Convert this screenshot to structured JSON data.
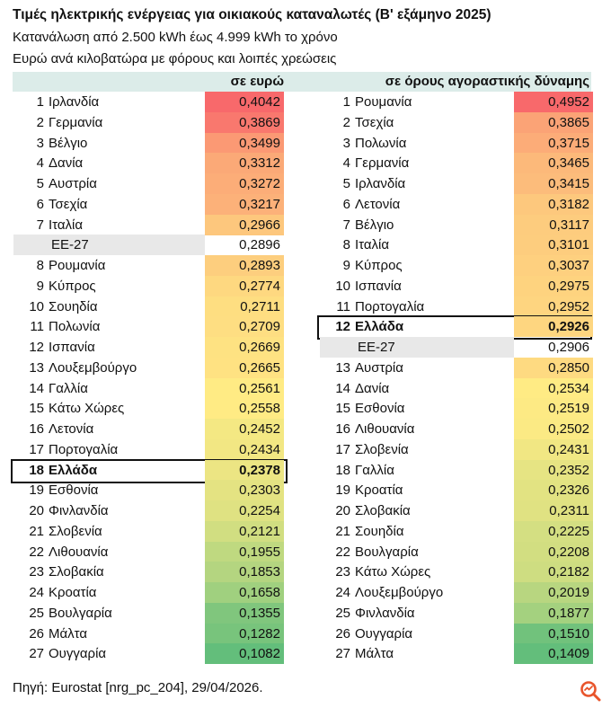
{
  "title": "Τιμές ηλεκτρικής ενέργειας για οικιακούς καταναλωτές (Β' εξάμηνο 2025)",
  "subtitle1": "Κατανάλωση από 2.500 kWh έως 4.999 kWh το χρόνο",
  "subtitle2": "Ευρώ ανά κιλοβατώρα με φόρους και λοιπές χρεώσεις",
  "source": "Πηγή: Eurostat [nrg_pc_204], 29/04/2026.",
  "logo": "magnifier-logo-icon",
  "colors": {
    "high": "#f8696b",
    "mid": "#ffeb84",
    "low": "#63be7b",
    "header_bg": "#dcece9",
    "eu_bg": "#e8e8e8"
  },
  "chart_data": {
    "type": "table",
    "tables": [
      {
        "header": "σε ευρώ",
        "rows": [
          {
            "rank": "1",
            "name": "Ιρλανδία",
            "value": "0,4042"
          },
          {
            "rank": "2",
            "name": "Γερμανία",
            "value": "0,3869"
          },
          {
            "rank": "3",
            "name": "Βέλγιο",
            "value": "0,3499"
          },
          {
            "rank": "4",
            "name": "Δανία",
            "value": "0,3312"
          },
          {
            "rank": "5",
            "name": "Αυστρία",
            "value": "0,3272"
          },
          {
            "rank": "6",
            "name": "Τσεχία",
            "value": "0,3217"
          },
          {
            "rank": "7",
            "name": "Ιταλία",
            "value": "0,2966"
          },
          {
            "rank": "",
            "name": "ΕΕ-27",
            "value": "0,2896",
            "eu": true
          },
          {
            "rank": "8",
            "name": "Ρουμανία",
            "value": "0,2893"
          },
          {
            "rank": "9",
            "name": "Κύπρος",
            "value": "0,2774"
          },
          {
            "rank": "10",
            "name": "Σουηδία",
            "value": "0,2711"
          },
          {
            "rank": "11",
            "name": "Πολωνία",
            "value": "0,2709"
          },
          {
            "rank": "12",
            "name": "Ισπανία",
            "value": "0,2669"
          },
          {
            "rank": "13",
            "name": "Λουξεμβούργο",
            "value": "0,2665"
          },
          {
            "rank": "14",
            "name": "Γαλλία",
            "value": "0,2561"
          },
          {
            "rank": "15",
            "name": "Κάτω Χώρες",
            "value": "0,2558"
          },
          {
            "rank": "16",
            "name": "Λετονία",
            "value": "0,2452"
          },
          {
            "rank": "17",
            "name": "Πορτογαλία",
            "value": "0,2434"
          },
          {
            "rank": "18",
            "name": "Ελλάδα",
            "value": "0,2378",
            "highlight": true
          },
          {
            "rank": "19",
            "name": "Εσθονία",
            "value": "0,2303"
          },
          {
            "rank": "20",
            "name": "Φινλανδία",
            "value": "0,2254"
          },
          {
            "rank": "21",
            "name": "Σλοβενία",
            "value": "0,2121"
          },
          {
            "rank": "22",
            "name": "Λιθουανία",
            "value": "0,1955"
          },
          {
            "rank": "23",
            "name": "Σλοβακία",
            "value": "0,1853"
          },
          {
            "rank": "24",
            "name": "Κροατία",
            "value": "0,1658"
          },
          {
            "rank": "25",
            "name": "Βουλγαρία",
            "value": "0,1355"
          },
          {
            "rank": "26",
            "name": "Μάλτα",
            "value": "0,1282"
          },
          {
            "rank": "27",
            "name": "Ουγγαρία",
            "value": "0,1082"
          }
        ]
      },
      {
        "header": "σε όρους αγοραστικής δύναμης",
        "rows": [
          {
            "rank": "1",
            "name": "Ρουμανία",
            "value": "0,4952"
          },
          {
            "rank": "2",
            "name": "Τσεχία",
            "value": "0,3865"
          },
          {
            "rank": "3",
            "name": "Πολωνία",
            "value": "0,3715"
          },
          {
            "rank": "4",
            "name": "Γερμανία",
            "value": "0,3465"
          },
          {
            "rank": "5",
            "name": "Ιρλανδία",
            "value": "0,3415"
          },
          {
            "rank": "6",
            "name": "Λετονία",
            "value": "0,3182"
          },
          {
            "rank": "7",
            "name": "Βέλγιο",
            "value": "0,3117"
          },
          {
            "rank": "8",
            "name": "Ιταλία",
            "value": "0,3101"
          },
          {
            "rank": "9",
            "name": "Κύπρος",
            "value": "0,3037"
          },
          {
            "rank": "10",
            "name": "Ισπανία",
            "value": "0,2975"
          },
          {
            "rank": "11",
            "name": "Πορτογαλία",
            "value": "0,2952"
          },
          {
            "rank": "12",
            "name": "Ελλάδα",
            "value": "0,2926",
            "highlight": true
          },
          {
            "rank": "",
            "name": "ΕΕ-27",
            "value": "0,2906",
            "eu": true
          },
          {
            "rank": "13",
            "name": "Αυστρία",
            "value": "0,2850"
          },
          {
            "rank": "14",
            "name": "Δανία",
            "value": "0,2534"
          },
          {
            "rank": "15",
            "name": "Εσθονία",
            "value": "0,2519"
          },
          {
            "rank": "16",
            "name": "Λιθουανία",
            "value": "0,2502"
          },
          {
            "rank": "17",
            "name": "Σλοβενία",
            "value": "0,2431"
          },
          {
            "rank": "18",
            "name": "Γαλλία",
            "value": "0,2352"
          },
          {
            "rank": "19",
            "name": "Κροατία",
            "value": "0,2326"
          },
          {
            "rank": "20",
            "name": "Σλοβακία",
            "value": "0,2311"
          },
          {
            "rank": "21",
            "name": "Σουηδία",
            "value": "0,2225"
          },
          {
            "rank": "22",
            "name": "Βουλγαρία",
            "value": "0,2208"
          },
          {
            "rank": "23",
            "name": "Κάτω Χώρες",
            "value": "0,2182"
          },
          {
            "rank": "24",
            "name": "Λουξεμβούργο",
            "value": "0,2019"
          },
          {
            "rank": "25",
            "name": "Φινλανδία",
            "value": "0,1877"
          },
          {
            "rank": "26",
            "name": "Ουγγαρία",
            "value": "0,1510"
          },
          {
            "rank": "27",
            "name": "Μάλτα",
            "value": "0,1409"
          }
        ]
      }
    ]
  }
}
